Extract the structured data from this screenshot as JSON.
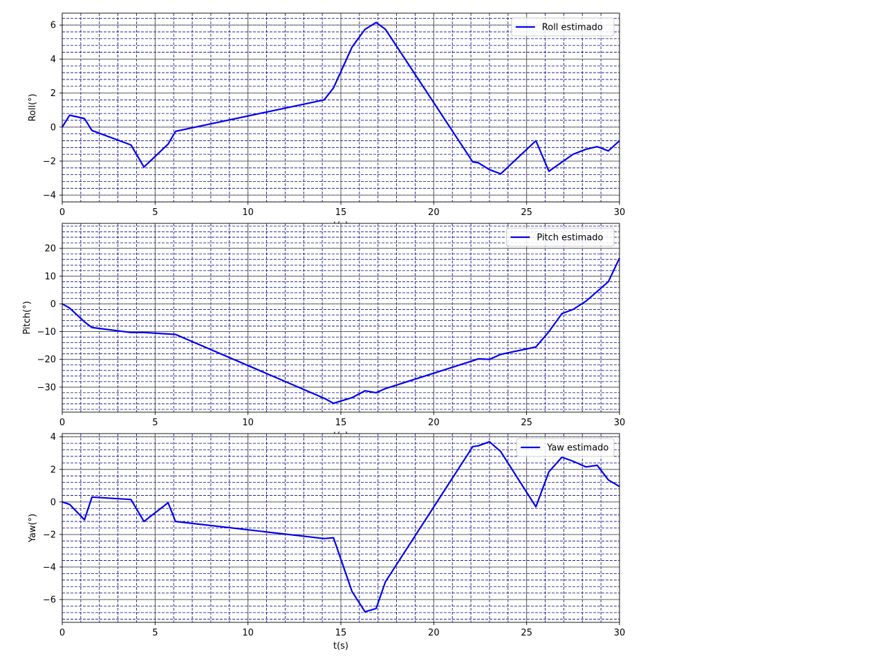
{
  "chart_data": [
    {
      "type": "line",
      "xlabel": "t(s)",
      "ylabel": "Roll(°)",
      "xlim": [
        0,
        30
      ],
      "ylim": [
        -4.4,
        6.7
      ],
      "xticks": [
        0,
        5,
        10,
        15,
        20,
        25,
        30
      ],
      "yticks": [
        -4,
        -2,
        0,
        2,
        4,
        6
      ],
      "grid": true,
      "legend": "top-right",
      "series": [
        {
          "name": "Roll estimado",
          "color": "#0000ee",
          "x": [
            0,
            0.4,
            0.8,
            1.2,
            1.6,
            3.7,
            4.4,
            5.7,
            6.1,
            14.1,
            14.6,
            15.6,
            16.3,
            16.9,
            17.4,
            22.1,
            22.4,
            23.0,
            23.6,
            25.5,
            26.2,
            27.5,
            28.2,
            28.8,
            29.4,
            30.0
          ],
          "y": [
            0.0,
            0.7,
            0.6,
            0.5,
            -0.2,
            -1.05,
            -2.35,
            -1.0,
            -0.25,
            1.6,
            2.3,
            4.7,
            5.75,
            6.15,
            5.75,
            -2.05,
            -2.1,
            -2.5,
            -2.75,
            -0.8,
            -2.6,
            -1.6,
            -1.3,
            -1.15,
            -1.4,
            -0.8
          ]
        }
      ]
    },
    {
      "type": "line",
      "xlabel": "t(s)",
      "ylabel": "Pitch(°)",
      "xlim": [
        0,
        30
      ],
      "ylim": [
        -39,
        29
      ],
      "xticks": [
        0,
        5,
        10,
        15,
        20,
        25,
        30
      ],
      "yticks": [
        -30,
        -20,
        -10,
        0,
        10,
        20
      ],
      "grid": true,
      "legend": "top-right",
      "series": [
        {
          "name": "Pitch estimado",
          "color": "#0000ee",
          "x": [
            0,
            0.4,
            1.2,
            1.6,
            3.7,
            4.4,
            6.1,
            14.1,
            14.6,
            15.6,
            16.3,
            16.9,
            17.4,
            22.1,
            22.4,
            23.0,
            23.6,
            25.5,
            26.2,
            26.9,
            27.5,
            28.2,
            28.8,
            29.4,
            30.0
          ],
          "y": [
            0,
            -1.5,
            -6.5,
            -8.5,
            -10.3,
            -10.3,
            -11,
            -34,
            -35.8,
            -33.8,
            -31.3,
            -32,
            -30.5,
            -20.5,
            -19.8,
            -20,
            -18.2,
            -15.5,
            -10,
            -3.5,
            -2,
            1,
            4.5,
            8,
            16.5
          ]
        }
      ]
    },
    {
      "type": "line",
      "xlabel": "t(s)",
      "ylabel": "Yaw(°)",
      "xlim": [
        0,
        30
      ],
      "ylim": [
        -7.4,
        4.2
      ],
      "xticks": [
        0,
        5,
        10,
        15,
        20,
        25,
        30
      ],
      "yticks": [
        -6,
        -4,
        -2,
        0,
        2,
        4
      ],
      "grid": true,
      "legend": "top-right",
      "series": [
        {
          "name": "Yaw estimado",
          "color": "#0000ee",
          "x": [
            0,
            0.4,
            1.2,
            1.6,
            3.7,
            4.4,
            5.7,
            6.1,
            14.1,
            14.6,
            15.6,
            16.3,
            16.9,
            17.4,
            22.1,
            22.4,
            23.0,
            23.6,
            25.5,
            26.2,
            26.9,
            27.5,
            28.2,
            28.8,
            29.4,
            30.0
          ],
          "y": [
            0,
            -0.15,
            -1.1,
            0.3,
            0.15,
            -1.2,
            -0.05,
            -1.2,
            -2.25,
            -2.2,
            -5.5,
            -6.75,
            -6.55,
            -4.9,
            3.4,
            3.45,
            3.7,
            3.1,
            -0.3,
            1.85,
            2.75,
            2.5,
            2.15,
            2.25,
            1.35,
            0.95
          ]
        }
      ]
    }
  ]
}
